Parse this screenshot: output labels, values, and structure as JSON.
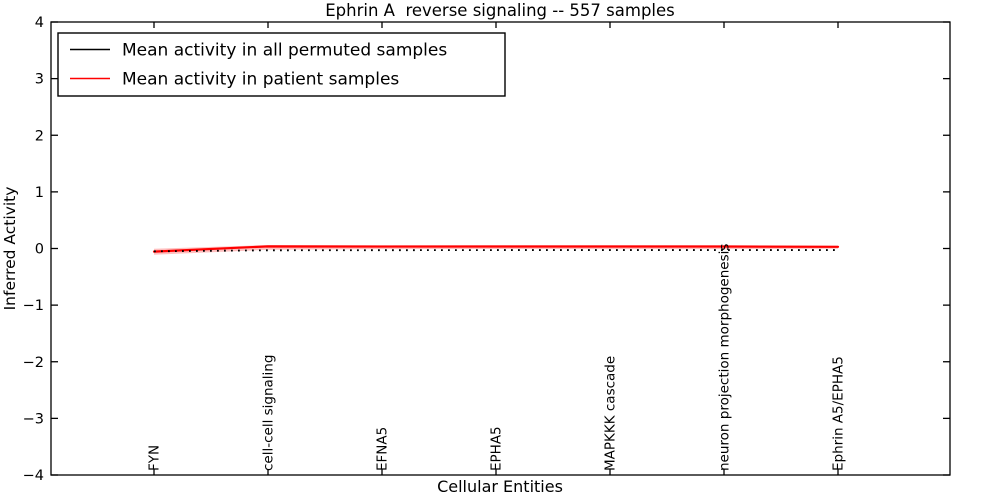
{
  "chart_data": {
    "type": "line",
    "title": "Ephrin A  reverse signaling -- 557 samples",
    "xlabel": "Cellular Entities",
    "ylabel": "Inferred Activity",
    "ylim": [
      -4,
      4
    ],
    "ytick_values": [
      4,
      3,
      2,
      1,
      0,
      -1,
      -2,
      -3,
      -4
    ],
    "ytick_labels": [
      "4",
      "3",
      "2",
      "1",
      "0",
      "−1",
      "−2",
      "−3",
      "−4"
    ],
    "categories": [
      "FYN",
      "cell-cell signaling",
      "EFNA5",
      "EPHA5",
      "MAPKKK cascade",
      "neuron projection morphogenesis",
      "Ephrin A5/EPHA5"
    ],
    "series": [
      {
        "name": "Mean activity in all permuted samples",
        "color": "#000000",
        "linestyle": "solid",
        "linewidth": 1.2,
        "values": [
          -0.055,
          0.038,
          0.034,
          0.035,
          0.035,
          0.035,
          0.03
        ]
      },
      {
        "name": "Mean activity in patient samples",
        "color": "#ff0000",
        "linestyle": "solid",
        "linewidth": 2.2,
        "values": [
          -0.055,
          0.038,
          0.034,
          0.035,
          0.035,
          0.035,
          0.03
        ]
      }
    ],
    "dotted_reference_line": {
      "color": "#000000",
      "values": [
        -0.05,
        -0.032,
        -0.03,
        -0.028,
        -0.028,
        -0.028,
        -0.028
      ]
    },
    "band": {
      "color": "#ff0000",
      "opacity": 0.25,
      "upper": [
        -0.005,
        0.06,
        0.06,
        0.058,
        0.058,
        0.055,
        0.05
      ],
      "lower": [
        -0.11,
        -0.022,
        -0.01,
        -0.008,
        -0.01,
        -0.01,
        -0.005
      ]
    },
    "legend": {
      "position": "upper left",
      "entries": [
        {
          "label": "Mean activity in all permuted samples",
          "color": "#000000"
        },
        {
          "label": "Mean activity in patient samples",
          "color": "#ff0000"
        }
      ]
    },
    "grid": false,
    "background": "#ffffff",
    "frame_color": "#000000"
  }
}
